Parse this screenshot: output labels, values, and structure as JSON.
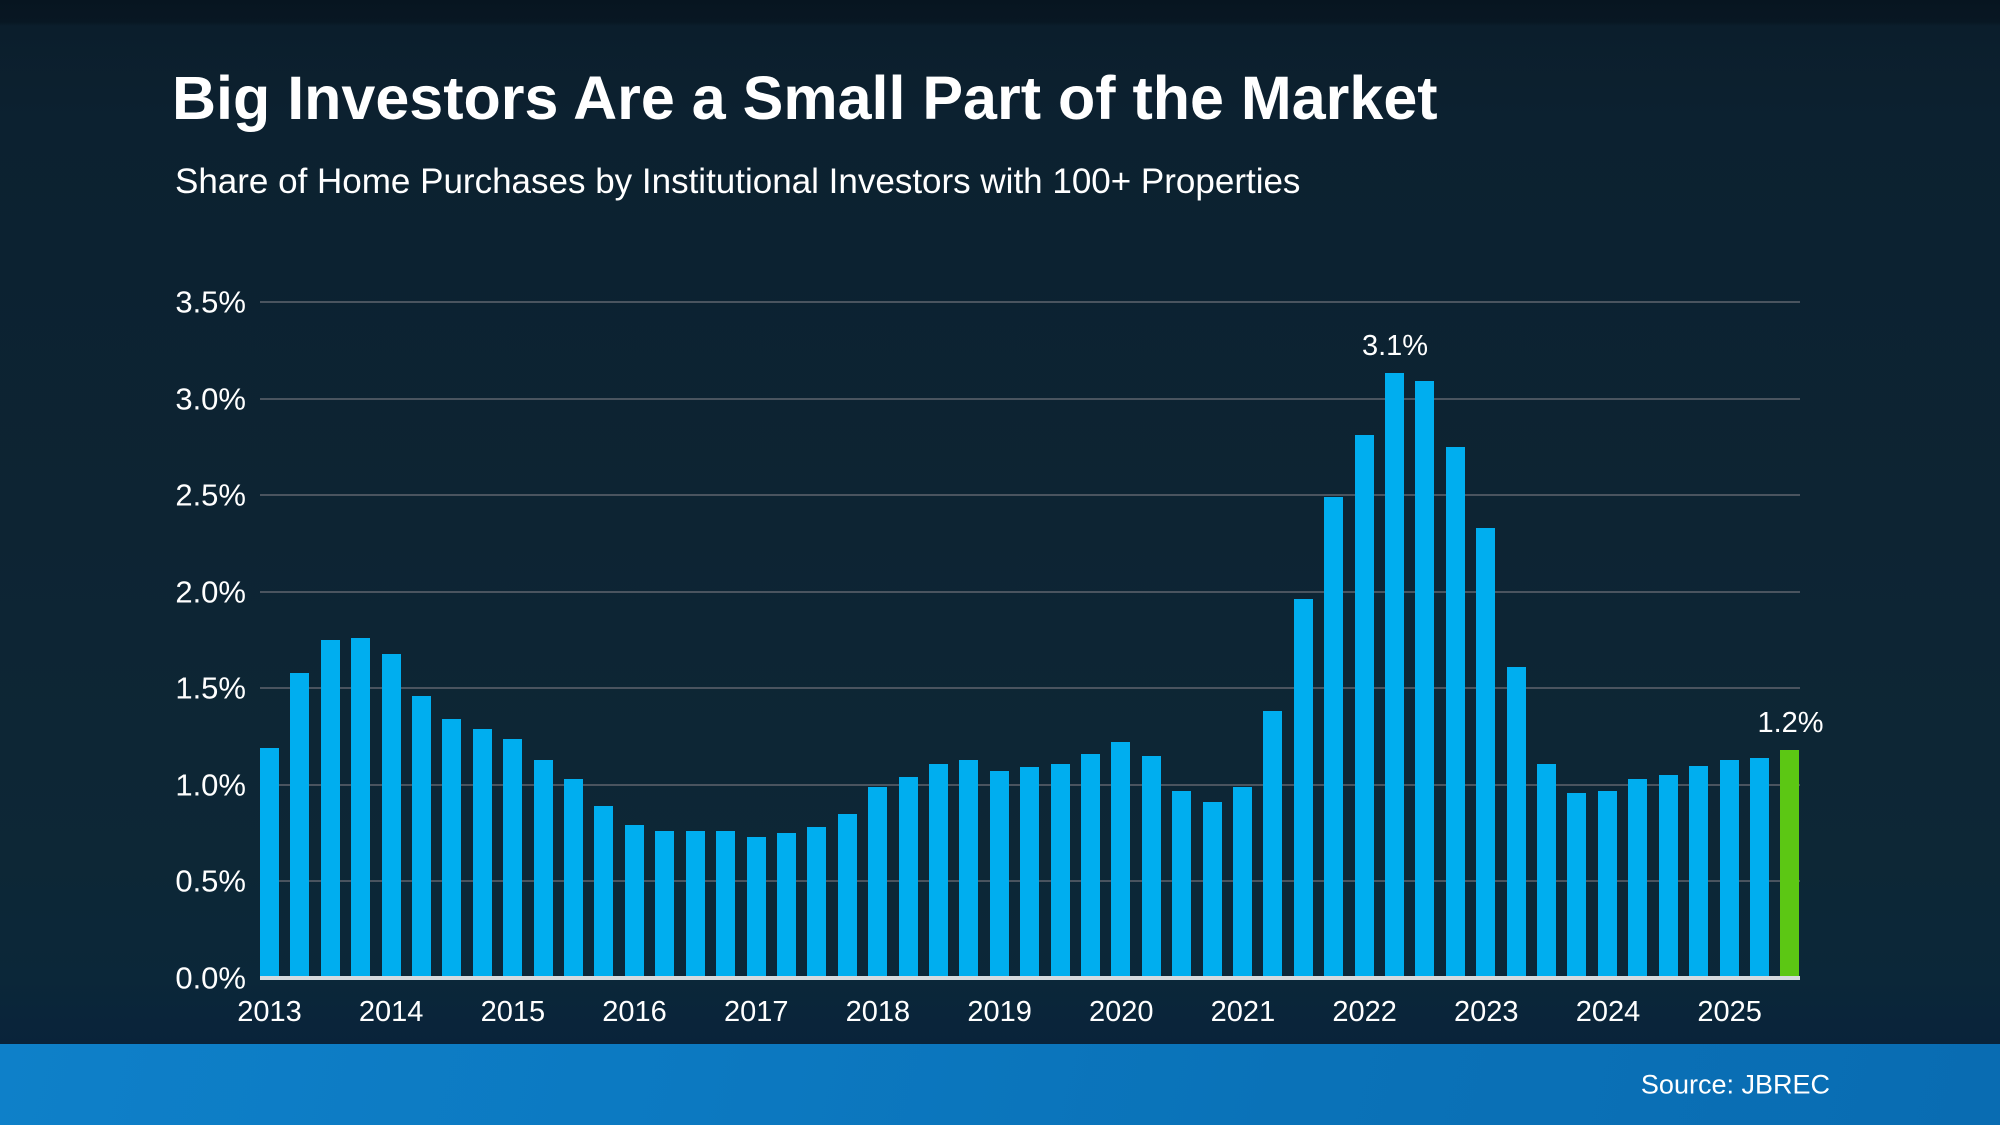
{
  "header": {
    "title": "Big Investors Are a Small Part of the Market",
    "subtitle": "Share of Home Purchases by Institutional Investors with 100+ Properties"
  },
  "footer": {
    "source": "Source: JBREC"
  },
  "chart_data": {
    "type": "bar",
    "title": "Big Investors Are a Small Part of the Market",
    "subtitle": "Share of Home Purchases by Institutional Investors with 100+ Properties",
    "unit": "%",
    "ylim": [
      0,
      3.5
    ],
    "grid": "horizontal",
    "legend": "none",
    "categories": [
      "2013 Q1",
      "2013 Q2",
      "2013 Q3",
      "2013 Q4",
      "2014 Q1",
      "2014 Q2",
      "2014 Q3",
      "2014 Q4",
      "2015 Q1",
      "2015 Q2",
      "2015 Q3",
      "2015 Q4",
      "2016 Q1",
      "2016 Q2",
      "2016 Q3",
      "2016 Q4",
      "2017 Q1",
      "2017 Q2",
      "2017 Q3",
      "2017 Q4",
      "2018 Q1",
      "2018 Q2",
      "2018 Q3",
      "2018 Q4",
      "2019 Q1",
      "2019 Q2",
      "2019 Q3",
      "2019 Q4",
      "2020 Q1",
      "2020 Q2",
      "2020 Q3",
      "2020 Q4",
      "2021 Q1",
      "2021 Q2",
      "2021 Q3",
      "2021 Q4",
      "2022 Q1",
      "2022 Q2",
      "2022 Q3",
      "2022 Q4",
      "2023 Q1",
      "2023 Q2",
      "2023 Q3",
      "2023 Q4",
      "2024 Q1",
      "2024 Q2",
      "2024 Q3",
      "2024 Q4",
      "2025 Q1",
      "2025 Q2",
      "2025 Q3"
    ],
    "values": [
      1.19,
      1.58,
      1.75,
      1.76,
      1.68,
      1.46,
      1.34,
      1.29,
      1.24,
      1.13,
      1.03,
      0.89,
      0.79,
      0.76,
      0.76,
      0.76,
      0.73,
      0.75,
      0.78,
      0.85,
      0.99,
      1.04,
      1.11,
      1.13,
      1.07,
      1.09,
      1.11,
      1.16,
      1.22,
      1.15,
      0.97,
      0.91,
      0.99,
      1.38,
      1.96,
      2.49,
      2.81,
      3.13,
      3.09,
      2.75,
      2.33,
      1.61,
      1.11,
      0.96,
      0.97,
      1.03,
      1.05,
      1.1,
      1.13,
      1.14,
      1.18
    ],
    "yticks": [
      {
        "value": 0.0,
        "label": "0.0%"
      },
      {
        "value": 0.5,
        "label": "0.5%"
      },
      {
        "value": 1.0,
        "label": "1.0%"
      },
      {
        "value": 1.5,
        "label": "1.5%"
      },
      {
        "value": 2.0,
        "label": "2.0%"
      },
      {
        "value": 2.5,
        "label": "2.5%"
      },
      {
        "value": 3.0,
        "label": "3.0%"
      },
      {
        "value": 3.5,
        "label": "3.5%"
      }
    ],
    "year_labels": [
      "2013",
      "2014",
      "2015",
      "2016",
      "2017",
      "2018",
      "2019",
      "2020",
      "2021",
      "2022",
      "2023",
      "2024",
      "2025"
    ],
    "bar_color": "#00AEEF",
    "highlight": {
      "index": 50,
      "color": "#5CC714"
    },
    "annotations": [
      {
        "index": 37,
        "label": "3.1%"
      },
      {
        "index": 50,
        "label": "1.2%"
      }
    ]
  }
}
